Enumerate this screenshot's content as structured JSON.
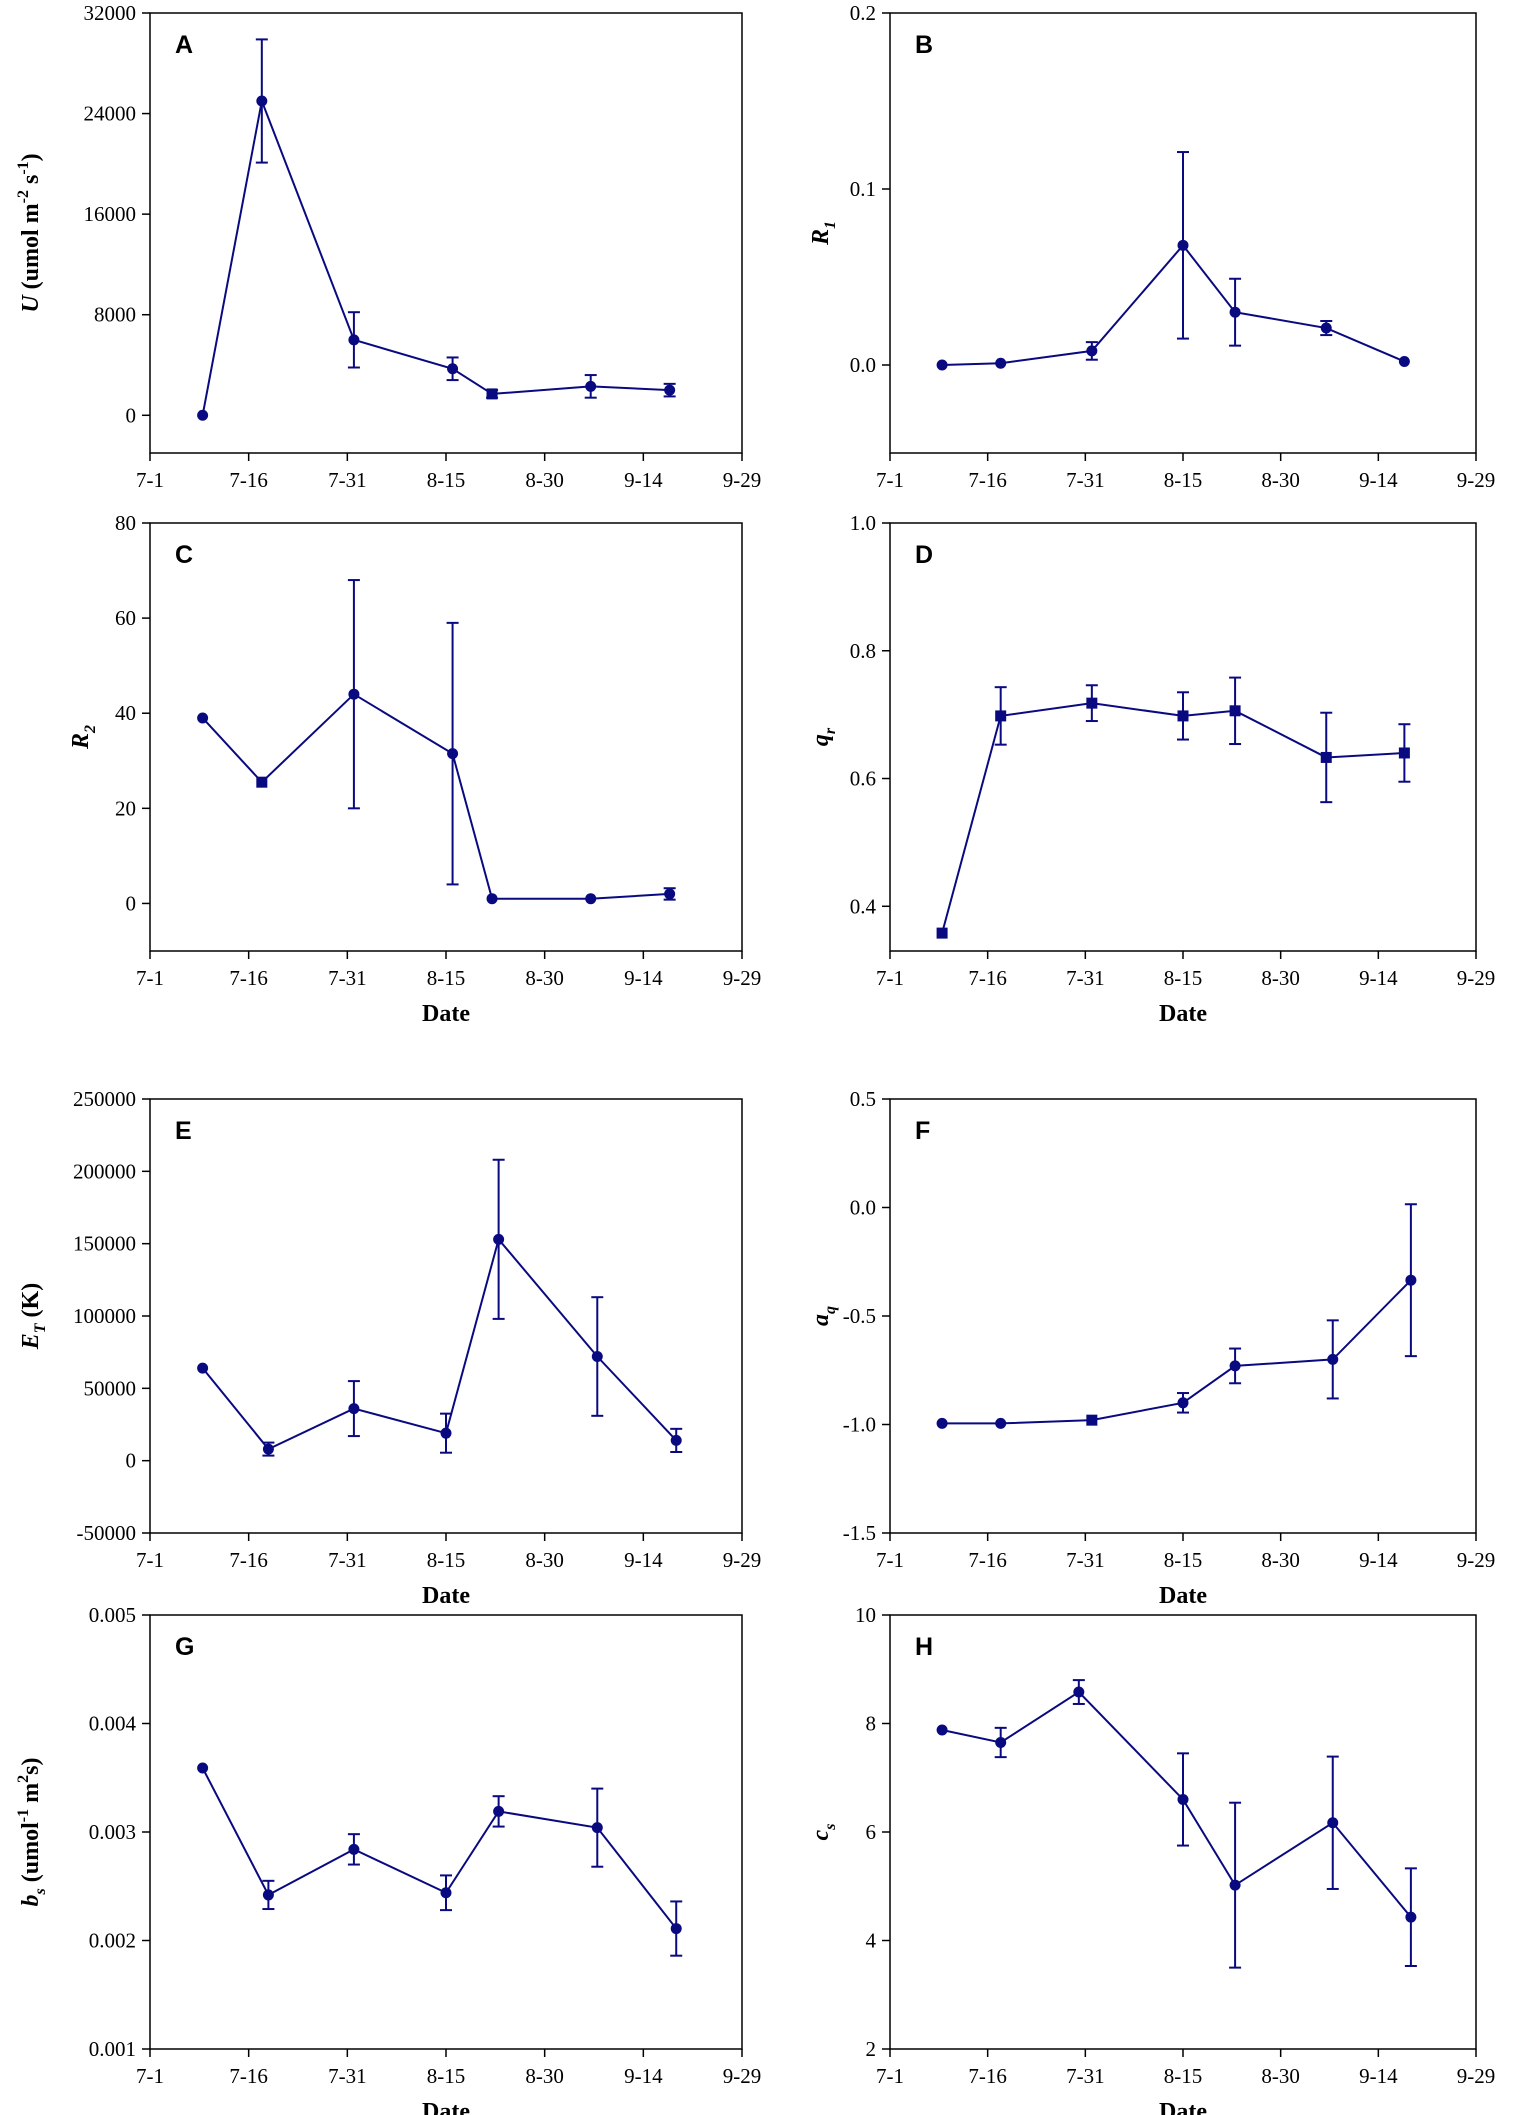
{
  "figure": {
    "color": "#0a0a80"
  },
  "chart_data": [
    {
      "id": "A",
      "type": "line",
      "letter": "A",
      "ylabel": {
        "main": "U (umol m",
        "sup1": "-2",
        "mid": " s",
        "sup2": "-1",
        "tail": ")"
      },
      "xlabel": "",
      "x_ticks": [
        "7-1",
        "7-16",
        "7-31",
        "8-15",
        "8-30",
        "9-14",
        "9-29"
      ],
      "y_ticks": [
        "0",
        "8000",
        "16000",
        "24000",
        "32000"
      ],
      "xlim": [
        0,
        90
      ],
      "ylim": [
        -3000,
        32000
      ],
      "series": [
        {
          "name": "U",
          "x": [
            8,
            17,
            31,
            46,
            52,
            67,
            79
          ],
          "values": [
            0,
            25000,
            6000,
            3700,
            1700,
            2300,
            2000
          ],
          "err": [
            0,
            4900,
            2200,
            900,
            300,
            900,
            500
          ],
          "markers": [
            "c",
            "c",
            "c",
            "c",
            "s",
            "c",
            "c"
          ]
        }
      ]
    },
    {
      "id": "B",
      "type": "line",
      "letter": "B",
      "ylabel": {
        "main": "R",
        "sub": "1"
      },
      "xlabel": "",
      "x_ticks": [
        "7-1",
        "7-16",
        "7-31",
        "8-15",
        "8-30",
        "9-14",
        "9-29"
      ],
      "y_ticks": [
        "0.0",
        "0.1",
        "0.2"
      ],
      "xlim": [
        0,
        90
      ],
      "ylim": [
        -0.05,
        0.2
      ],
      "series": [
        {
          "name": "R1",
          "x": [
            8,
            17,
            31,
            45,
            53,
            67,
            79
          ],
          "values": [
            0.0,
            0.001,
            0.008,
            0.068,
            0.03,
            0.021,
            0.002
          ],
          "err": [
            0,
            0,
            0.005,
            0.053,
            0.019,
            0.004,
            0
          ],
          "markers": [
            "c",
            "c",
            "c",
            "c",
            "c",
            "c",
            "c"
          ]
        }
      ]
    },
    {
      "id": "C",
      "type": "line",
      "letter": "C",
      "ylabel": {
        "main": "R",
        "sub": "2"
      },
      "xlabel": "Date",
      "x_ticks": [
        "7-1",
        "7-16",
        "7-31",
        "8-15",
        "8-30",
        "9-14",
        "9-29"
      ],
      "y_ticks": [
        "0",
        "20",
        "40",
        "60",
        "80"
      ],
      "xlim": [
        0,
        90
      ],
      "ylim": [
        -10,
        80
      ],
      "series": [
        {
          "name": "R2",
          "x": [
            8,
            17,
            31,
            46,
            52,
            67,
            79
          ],
          "values": [
            39,
            25.5,
            44,
            31.5,
            1,
            1,
            2
          ],
          "err": [
            0,
            0,
            24,
            27.5,
            0,
            0,
            1.2
          ],
          "markers": [
            "c",
            "s",
            "c",
            "c",
            "c",
            "c",
            "c"
          ]
        }
      ]
    },
    {
      "id": "D",
      "type": "line",
      "letter": "D",
      "ylabel": {
        "main": "q",
        "sub": "r"
      },
      "xlabel": "Date",
      "x_ticks": [
        "7-1",
        "7-16",
        "7-31",
        "8-15",
        "8-30",
        "9-14",
        "9-29"
      ],
      "y_ticks": [
        "0.4",
        "0.6",
        "0.8",
        "1.0"
      ],
      "xlim": [
        0,
        90
      ],
      "ylim": [
        0.33,
        1.0
      ],
      "series": [
        {
          "name": "qr",
          "x": [
            8,
            17,
            31,
            45,
            53,
            67,
            79
          ],
          "values": [
            0.358,
            0.698,
            0.718,
            0.698,
            0.706,
            0.633,
            0.64
          ],
          "err": [
            0,
            0.045,
            0.028,
            0.037,
            0.052,
            0.07,
            0.045
          ],
          "markers": [
            "s",
            "s",
            "s",
            "s",
            "s",
            "s",
            "s"
          ]
        }
      ]
    },
    {
      "id": "E",
      "type": "line",
      "letter": "E",
      "ylabel": {
        "main": "E",
        "sub": "T",
        "tail": " (K)"
      },
      "xlabel": "Date",
      "x_ticks": [
        "7-1",
        "7-16",
        "7-31",
        "8-15",
        "8-30",
        "9-14",
        "9-29"
      ],
      "y_ticks": [
        "-50000",
        "0",
        "50000",
        "100000",
        "150000",
        "200000",
        "250000"
      ],
      "xlim": [
        0,
        90
      ],
      "ylim": [
        -50000,
        250000
      ],
      "series": [
        {
          "name": "ET",
          "x": [
            8,
            18,
            31,
            45,
            53,
            68,
            80
          ],
          "values": [
            64000,
            8000,
            36000,
            19000,
            153000,
            72000,
            14000
          ],
          "err": [
            0,
            4500,
            19000,
            13500,
            55000,
            41000,
            8000
          ],
          "markers": [
            "c",
            "c",
            "c",
            "c",
            "c",
            "c",
            "c"
          ]
        }
      ]
    },
    {
      "id": "F",
      "type": "line",
      "letter": "F",
      "ylabel": {
        "main": "a",
        "sub": "q"
      },
      "xlabel": "Date",
      "x_ticks": [
        "7-1",
        "7-16",
        "7-31",
        "8-15",
        "8-30",
        "9-14",
        "9-29"
      ],
      "y_ticks": [
        "-1.5",
        "-1.0",
        "-0.5",
        "0.0",
        "0.5"
      ],
      "xlim": [
        0,
        90
      ],
      "ylim": [
        -1.5,
        0.5
      ],
      "series": [
        {
          "name": "aq",
          "x": [
            8,
            17,
            31,
            45,
            53,
            68,
            80
          ],
          "values": [
            -0.995,
            -0.995,
            -0.98,
            -0.9,
            -0.73,
            -0.7,
            -0.335
          ],
          "err": [
            0,
            0,
            0,
            0.045,
            0.08,
            0.18,
            0.35
          ],
          "markers": [
            "c",
            "c",
            "s",
            "c",
            "c",
            "c",
            "c"
          ]
        }
      ]
    },
    {
      "id": "G",
      "type": "line",
      "letter": "G",
      "ylabel": {
        "main": "b",
        "sub": "s",
        "mid": " (umol",
        "sup1": "-1",
        "mid2": " m",
        "sup2": "2",
        "tail": "s)"
      },
      "xlabel": "Date",
      "x_ticks": [
        "7-1",
        "7-16",
        "7-31",
        "8-15",
        "8-30",
        "9-14",
        "9-29"
      ],
      "y_ticks": [
        "0.001",
        "0.002",
        "0.003",
        "0.004",
        "0.005"
      ],
      "xlim": [
        0,
        90
      ],
      "ylim": [
        0.001,
        0.005
      ],
      "series": [
        {
          "name": "bs",
          "x": [
            8,
            18,
            31,
            45,
            53,
            68,
            80
          ],
          "values": [
            0.00359,
            0.00242,
            0.00284,
            0.00244,
            0.00319,
            0.00304,
            0.00211
          ],
          "err": [
            0,
            0.00013,
            0.00014,
            0.00016,
            0.00014,
            0.00036,
            0.00025
          ],
          "markers": [
            "c",
            "c",
            "c",
            "c",
            "c",
            "c",
            "c"
          ]
        }
      ]
    },
    {
      "id": "H",
      "type": "line",
      "letter": "H",
      "ylabel": {
        "main": "c",
        "sub": "s"
      },
      "xlabel": "Date",
      "x_ticks": [
        "7-1",
        "7-16",
        "7-31",
        "8-15",
        "8-30",
        "9-14",
        "9-29"
      ],
      "y_ticks": [
        "2",
        "4",
        "6",
        "8",
        "10"
      ],
      "xlim": [
        0,
        90
      ],
      "ylim": [
        2,
        10
      ],
      "series": [
        {
          "name": "cs",
          "x": [
            8,
            17,
            29,
            45,
            53,
            68,
            80
          ],
          "values": [
            7.88,
            7.65,
            8.58,
            6.6,
            5.02,
            6.17,
            4.43
          ],
          "err": [
            0,
            0.27,
            0.22,
            0.85,
            1.52,
            1.22,
            0.9
          ],
          "markers": [
            "c",
            "c",
            "c",
            "c",
            "c",
            "c",
            "c"
          ]
        }
      ]
    }
  ]
}
